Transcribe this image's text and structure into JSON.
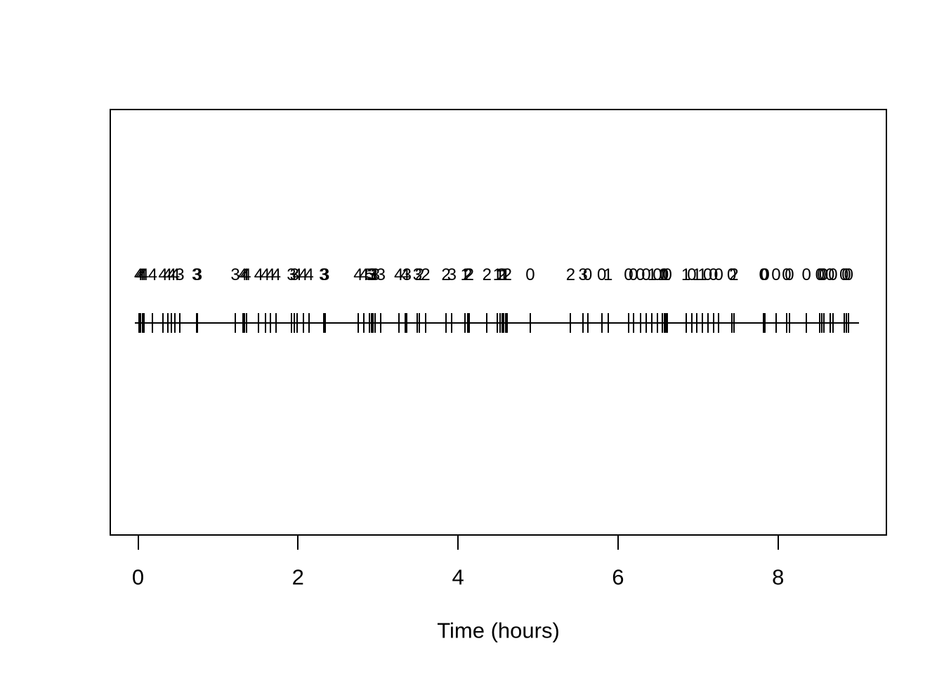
{
  "figure": {
    "background_color": "#ffffff",
    "ink_color": "#000000"
  },
  "chart_data": {
    "type": "scatter",
    "subtype": "event-rug-timeline",
    "title": "",
    "xlabel": "Time (hours)",
    "ylabel": "",
    "xlim": [
      -0.36,
      9.36
    ],
    "x_ticks": [
      0,
      2,
      4,
      6,
      8
    ],
    "grid": false,
    "legend": "none",
    "rug_line_x": [
      -0.04,
      9.01
    ],
    "x": [
      0.009,
      0.031,
      0.053,
      0.075,
      0.184,
      0.312,
      0.369,
      0.421,
      0.465,
      0.522,
      0.729,
      0.746,
      1.216,
      1.31,
      1.334,
      1.356,
      1.508,
      1.591,
      1.655,
      1.728,
      1.918,
      1.956,
      1.991,
      2.065,
      2.138,
      2.32,
      2.337,
      2.752,
      2.825,
      2.89,
      2.917,
      2.937,
      2.966,
      3.036,
      3.259,
      3.338,
      3.361,
      3.493,
      3.519,
      3.595,
      3.85,
      3.923,
      4.089,
      4.119,
      4.142,
      4.362,
      4.493,
      4.523,
      4.55,
      4.572,
      4.593,
      4.616,
      4.903,
      5.408,
      5.562,
      5.619,
      5.796,
      5.875,
      6.132,
      6.191,
      6.279,
      6.352,
      6.425,
      6.492,
      6.556,
      6.577,
      6.597,
      6.617,
      6.849,
      6.922,
      6.986,
      7.054,
      7.121,
      7.192,
      7.258,
      7.42,
      7.449,
      7.82,
      7.838,
      7.976,
      8.107,
      8.143,
      8.356,
      8.523,
      8.546,
      8.57,
      8.649,
      8.687,
      8.825,
      8.854,
      8.883
    ],
    "point_labels": [
      "4",
      "4",
      "4",
      "4",
      "4",
      "4",
      "4",
      "4",
      "4",
      "3",
      "3",
      "3",
      "3",
      "4",
      "4",
      "4",
      "4",
      "4",
      "4",
      "4",
      "3",
      "3",
      "4",
      "4",
      "4",
      "3",
      "3",
      "4",
      "4",
      "5",
      "3",
      "3",
      "3",
      "3",
      "4",
      "4",
      "3",
      "3",
      "2",
      "2",
      "2",
      "3",
      "1",
      "2",
      "2",
      "2",
      "1",
      "1",
      "2",
      "1",
      "1",
      "2",
      "0",
      "2",
      "3",
      "0",
      "0",
      "1",
      "0",
      "0",
      "0",
      "0",
      "1",
      "0",
      "1",
      "0",
      "1",
      "0",
      "1",
      "0",
      "1",
      "1",
      "0",
      "0",
      "0",
      "0",
      "2",
      "0",
      "0",
      "0",
      "0",
      "0",
      "0",
      "0",
      "0",
      "0",
      "0",
      "0",
      "0",
      "0",
      "0"
    ]
  }
}
